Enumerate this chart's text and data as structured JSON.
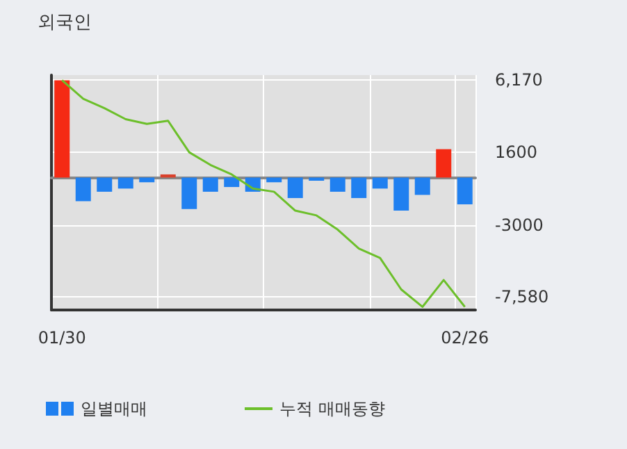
{
  "chart_data": {
    "type": "bar",
    "title": "외국인",
    "categories": [
      "01/30",
      null,
      null,
      null,
      null,
      null,
      null,
      null,
      null,
      null,
      null,
      null,
      null,
      null,
      null,
      null,
      null,
      null,
      null,
      "02/26"
    ],
    "series": [
      {
        "name": "일별매매",
        "color": "#2080f0",
        "colors": [
          "#f52a14",
          "#2080f0",
          "#2080f0",
          "#2080f0",
          "#2080f0",
          "#d9412c",
          "#2080f0",
          "#2080f0",
          "#2080f0",
          "#2080f0",
          "#2080f0",
          "#2080f0",
          "#2080f0",
          "#2080f0",
          "#2080f0",
          "#2080f0",
          "#2080f0",
          "#2080f0",
          "#f52a14",
          "#2080f0"
        ],
        "values": [
          6170,
          -1500,
          -900,
          -700,
          -300,
          200,
          -2000,
          -900,
          -600,
          -900,
          -300,
          -1300,
          -200,
          -900,
          -1300,
          -700,
          -2100,
          -1100,
          1800,
          -1700
        ]
      },
      {
        "name": "누적 매매동향",
        "type": "line",
        "color": "#6cbf2a",
        "values": [
          6170,
          5000,
          4400,
          3700,
          3400,
          3600,
          1600,
          800,
          200,
          -700,
          -900,
          -2100,
          -2400,
          -3300,
          -4500,
          -5100,
          -7100,
          -8200,
          -6500,
          -8200
        ]
      }
    ],
    "ylim": [
      -8400,
      6500
    ],
    "yticks": [
      {
        "value": 6170,
        "label": "6,170"
      },
      1600,
      -3000,
      {
        "value": -7580,
        "label": "-7,580"
      }
    ],
    "grid": true,
    "legend": "bottom left",
    "marker": "none"
  }
}
